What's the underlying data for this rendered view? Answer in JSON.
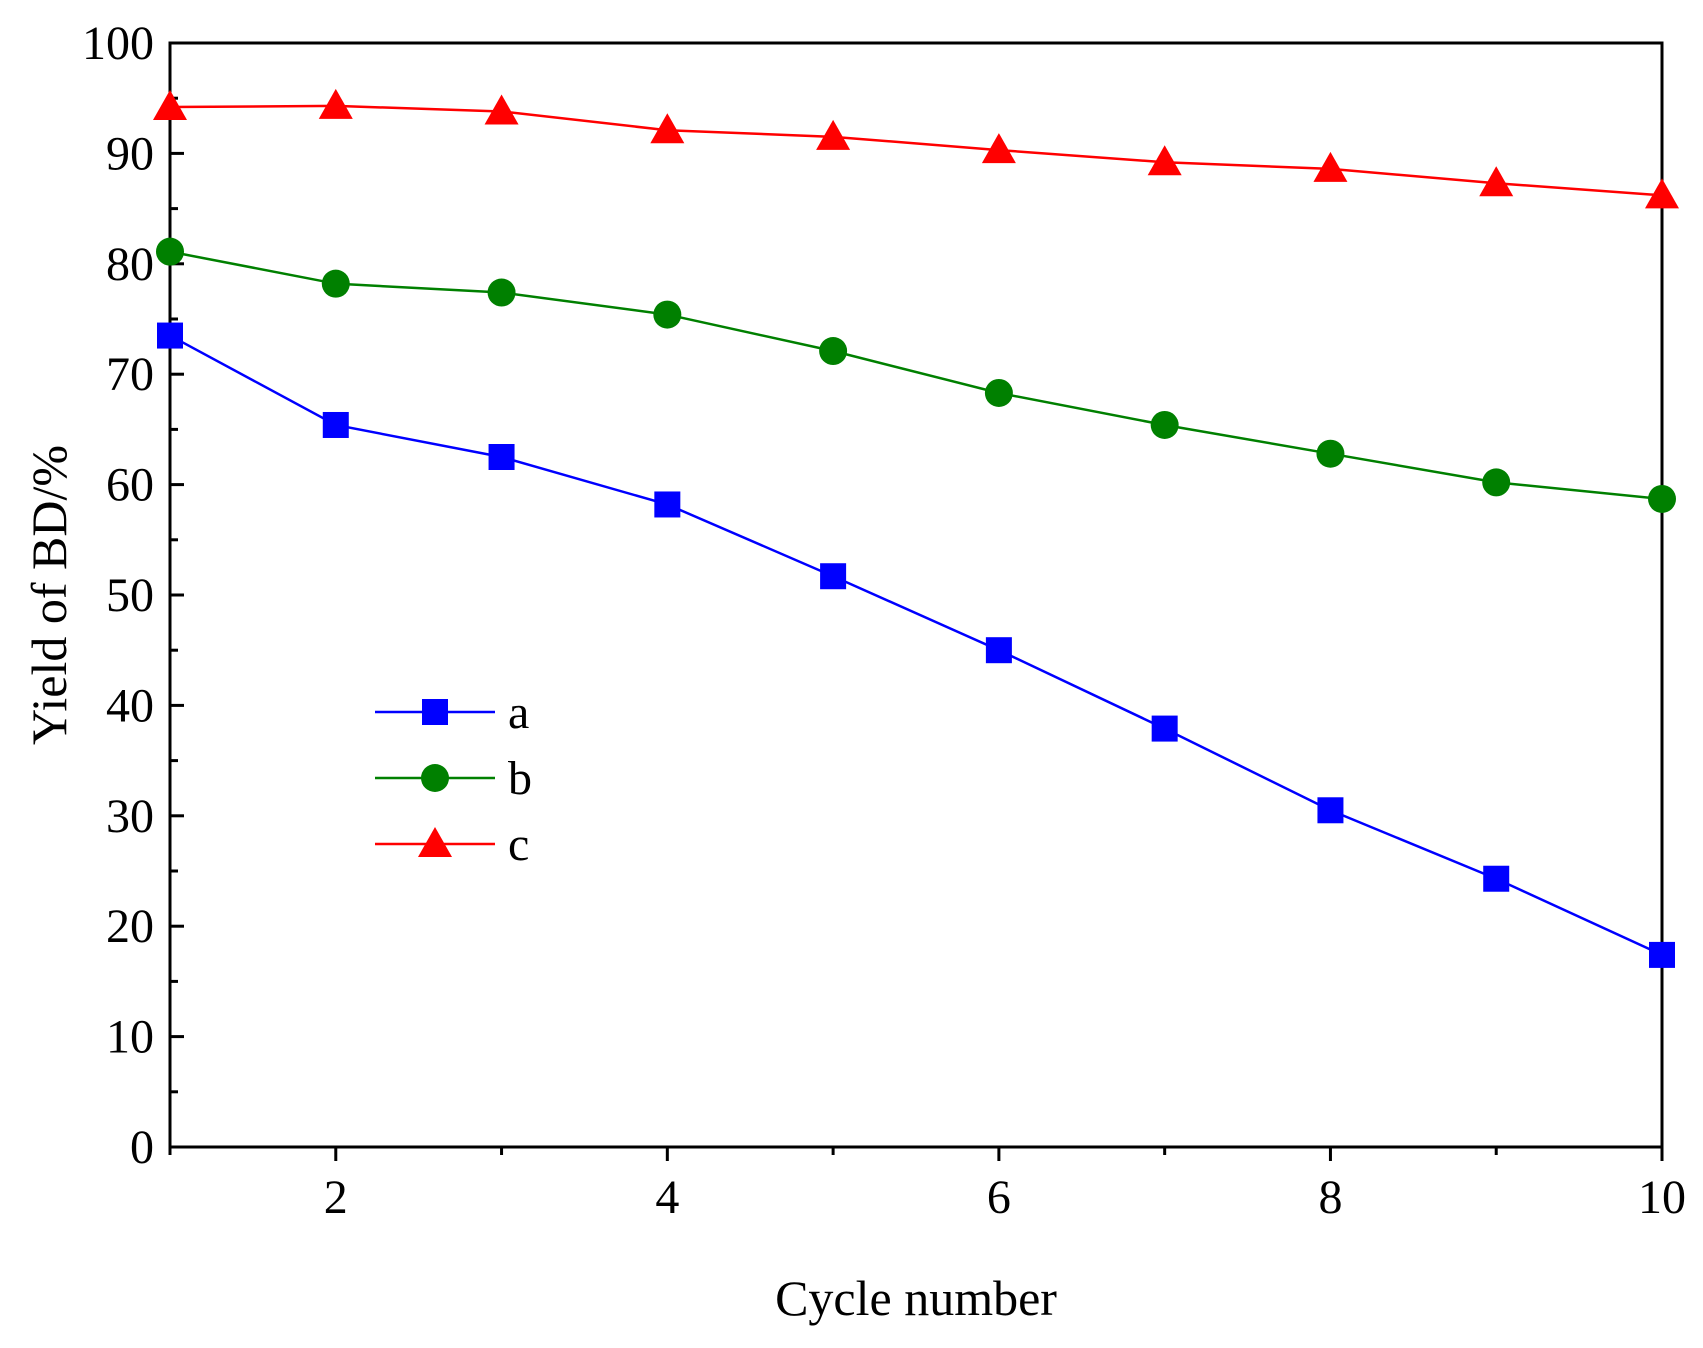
{
  "chart_data": {
    "type": "line",
    "title": "",
    "xlabel": "Cycle number",
    "ylabel": "Yield of BD/%",
    "xlim": [
      1,
      10
    ],
    "ylim": [
      0,
      100
    ],
    "x_ticks": [
      2,
      4,
      6,
      8,
      10
    ],
    "x_tick_labels": [
      "2",
      "4",
      "6",
      "8",
      "10"
    ],
    "y_ticks": [
      0,
      10,
      20,
      30,
      40,
      50,
      60,
      70,
      80,
      90,
      100
    ],
    "y_tick_labels": [
      "0",
      "10",
      "20",
      "30",
      "40",
      "50",
      "60",
      "70",
      "80",
      "90",
      "100"
    ],
    "grid": false,
    "legend_position": "center-left",
    "x": [
      1,
      2,
      3,
      4,
      5,
      6,
      7,
      8,
      9,
      10
    ],
    "series": [
      {
        "name": "a",
        "marker": "square",
        "color": "#0000ff",
        "values": [
          73.5,
          65.4,
          62.5,
          58.2,
          51.7,
          45.0,
          37.9,
          30.5,
          24.3,
          17.4
        ]
      },
      {
        "name": "b",
        "marker": "circle",
        "color": "#008000",
        "values": [
          81.1,
          78.2,
          77.4,
          75.4,
          72.1,
          68.3,
          65.4,
          62.8,
          60.2,
          58.7
        ]
      },
      {
        "name": "c",
        "marker": "triangle",
        "color": "#ff0000",
        "values": [
          94.2,
          94.3,
          93.8,
          92.1,
          91.5,
          90.3,
          89.2,
          88.6,
          87.3,
          86.2
        ]
      }
    ]
  }
}
